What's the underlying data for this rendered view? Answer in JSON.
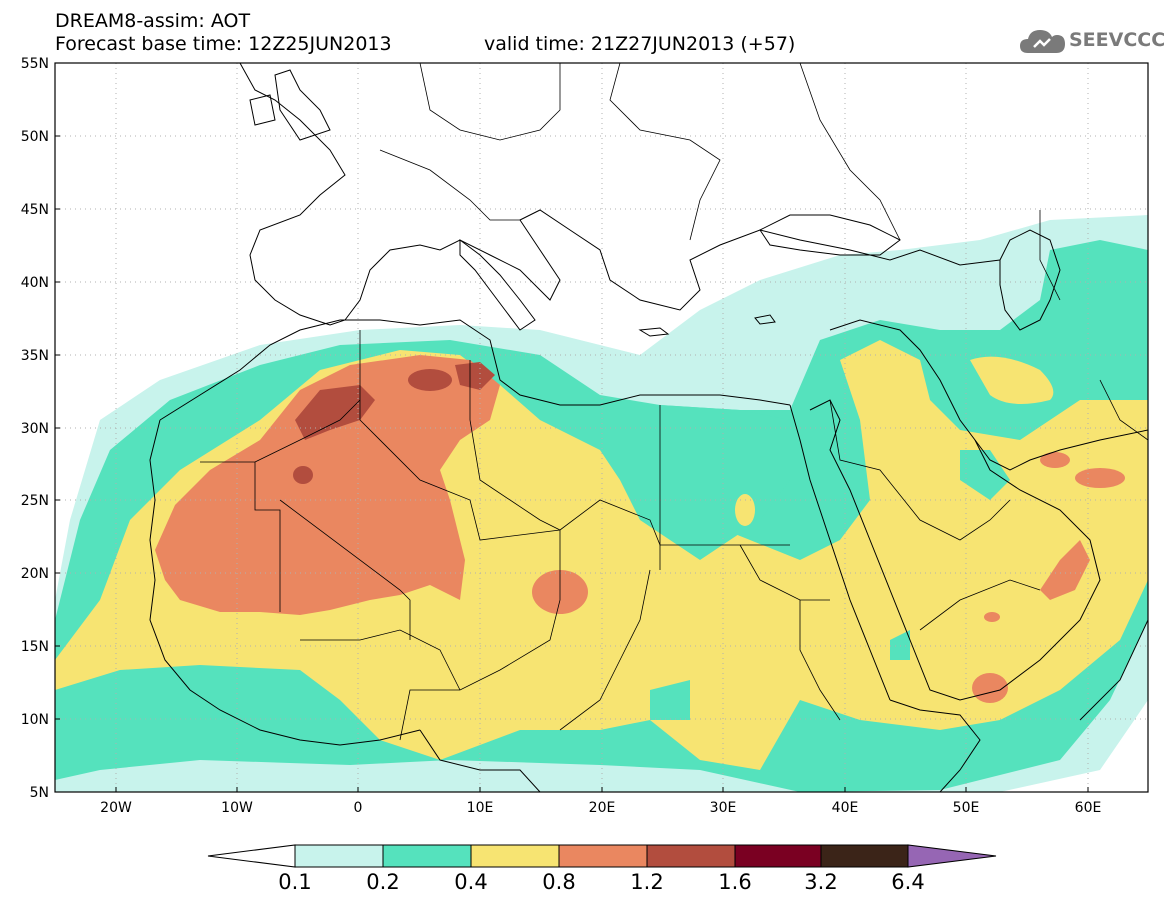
{
  "header": {
    "model_title": "DREAM8-assim: AOT",
    "base_time": "Forecast base time: 12Z25JUN2013",
    "valid_time": "valid time: 21Z27JUN2013 (+57)"
  },
  "logo": {
    "text": "SEEVCCC",
    "icon": "cloud-icon"
  },
  "axes": {
    "lat_labels": [
      "55N",
      "50N",
      "45N",
      "40N",
      "35N",
      "30N",
      "25N",
      "20N",
      "15N",
      "10N",
      "5N"
    ],
    "lon_labels": [
      "20W",
      "10W",
      "0",
      "10E",
      "20E",
      "30E",
      "40E",
      "50E",
      "60E"
    ]
  },
  "colorbar": {
    "labels": [
      "0.1",
      "0.2",
      "0.4",
      "0.8",
      "1.2",
      "1.6",
      "3.2",
      "6.4"
    ],
    "colors": [
      "#c8f3ec",
      "#55e2bd",
      "#f7e472",
      "#ea8760",
      "#b24d3e",
      "#7a0022",
      "#3b2418",
      "#9666b4"
    ]
  },
  "map_colors": {
    "c1": "#c8f3ec",
    "c2": "#55e2bd",
    "c3": "#f7e472",
    "c4": "#ea8760",
    "c5": "#b24d3e"
  }
}
